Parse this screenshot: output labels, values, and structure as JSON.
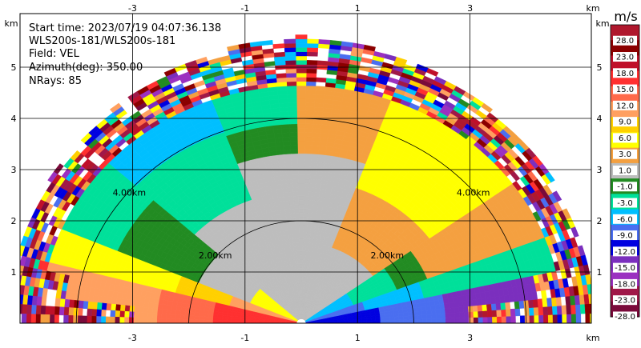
{
  "info": {
    "start_time": "Start time: 2023/07/19 04:07:36.138",
    "instrument": "WLS200s-181/WLS200s-181",
    "field": "Field: VEL",
    "azimuth": "Azimuth(deg): 350.00",
    "nrays": "NRays: 85"
  },
  "chart_data": {
    "type": "heatmap",
    "subtype": "RHI radar velocity scan",
    "field": "VEL",
    "azimuth_deg": 350.0,
    "n_rays": 85,
    "range_rings": [
      "2.00km",
      "4.00km"
    ],
    "x_unit": "km",
    "y_unit": "km",
    "x_ticks": [
      "-3",
      "-1",
      "1",
      "3"
    ],
    "y_ticks": [
      "1",
      "2",
      "3",
      "4",
      "5"
    ],
    "xlim": [
      -5.3,
      4.7
    ],
    "ylim": [
      0,
      5.8
    ],
    "grid": true,
    "colorbar": {
      "unit": "m/s",
      "ticks": [
        "28.0",
        "23.0",
        "18.0",
        "15.0",
        "12.0",
        "9.0",
        "6.0",
        "3.0",
        "1.0",
        "-1.0",
        "-3.0",
        "-6.0",
        "-9.0",
        "-12.0",
        "-15.0",
        "-18.0",
        "-23.0",
        "-28.0"
      ],
      "colors": [
        "#b0182e",
        "#8b0000",
        "#c0102a",
        "#ff3030",
        "#ff6a4a",
        "#ffa060",
        "#ffd000",
        "#ffff00",
        "#f4a040",
        "#bdbdbd",
        "#228b22",
        "#00e09a",
        "#00bfff",
        "#4a6ef0",
        "#0000e0",
        "#7b2fbe",
        "#9b30c0",
        "#a01848",
        "#7a0a3a"
      ]
    }
  }
}
